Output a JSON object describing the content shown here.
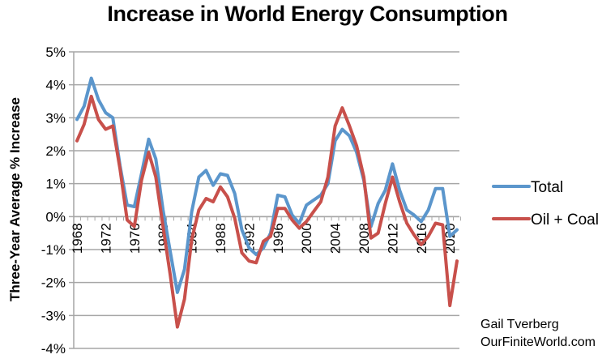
{
  "chart_data": {
    "type": "line",
    "title": "Increase in World Energy Consumption",
    "xlabel": "",
    "ylabel": "Three-Year Average % Increase",
    "ylim": [
      -4,
      5
    ],
    "yticks": [
      5,
      4,
      3,
      2,
      1,
      0,
      -1,
      -2,
      -3,
      -4
    ],
    "ytick_labels": [
      "5%",
      "4%",
      "3%",
      "2%",
      "1%",
      "0%",
      "-1%",
      "-2%",
      "-3%",
      "-4%"
    ],
    "xlim": [
      1968,
      2021
    ],
    "xtick_labels": [
      "1968",
      "1972",
      "1976",
      "1980",
      "1984",
      "1988",
      "1992",
      "1996",
      "2000",
      "2004",
      "2008",
      "2012",
      "2016",
      "2020"
    ],
    "grid": true,
    "legend_position": "right",
    "x": [
      1968,
      1969,
      1970,
      1971,
      1972,
      1973,
      1974,
      1975,
      1976,
      1977,
      1978,
      1979,
      1980,
      1981,
      1982,
      1983,
      1984,
      1985,
      1986,
      1987,
      1988,
      1989,
      1990,
      1991,
      1992,
      1993,
      1994,
      1995,
      1996,
      1997,
      1998,
      1999,
      2000,
      2001,
      2002,
      2003,
      2004,
      2005,
      2006,
      2007,
      2008,
      2009,
      2010,
      2011,
      2012,
      2013,
      2014,
      2015,
      2016,
      2017,
      2018,
      2019,
      2020,
      2021
    ],
    "series": [
      {
        "name": "Total",
        "color": "#5b96cc",
        "values": [
          2.95,
          3.35,
          4.2,
          3.55,
          3.15,
          3.0,
          1.55,
          0.35,
          0.3,
          1.3,
          2.35,
          1.75,
          0.2,
          -1.05,
          -2.3,
          -1.6,
          0.15,
          1.2,
          1.4,
          0.95,
          1.3,
          1.25,
          0.7,
          -0.4,
          -0.95,
          -1.15,
          -0.95,
          -0.5,
          0.65,
          0.6,
          0.05,
          -0.2,
          0.35,
          0.5,
          0.65,
          1.0,
          2.3,
          2.65,
          2.45,
          1.95,
          1.1,
          -0.3,
          0.4,
          0.8,
          1.6,
          0.8,
          0.2,
          0.05,
          -0.15,
          0.2,
          0.85,
          0.85,
          -0.6,
          -0.4
        ]
      },
      {
        "name": "Oil + Coal",
        "color": "#c8504b",
        "values": [
          2.3,
          2.8,
          3.65,
          2.95,
          2.65,
          2.75,
          1.45,
          -0.1,
          -0.3,
          1.1,
          1.95,
          1.2,
          -0.3,
          -1.75,
          -3.35,
          -2.5,
          -0.7,
          0.2,
          0.55,
          0.45,
          0.9,
          0.6,
          -0.05,
          -1.1,
          -1.35,
          -1.4,
          -0.75,
          -0.6,
          0.25,
          0.25,
          -0.1,
          -0.35,
          -0.15,
          0.15,
          0.45,
          1.2,
          2.75,
          3.3,
          2.75,
          2.15,
          1.2,
          -0.65,
          -0.5,
          0.4,
          1.2,
          0.45,
          -0.2,
          -0.55,
          -0.85,
          -0.6,
          -0.2,
          -0.25,
          -2.7,
          -1.35
        ]
      }
    ],
    "annotation": [
      "Gail Tverberg",
      "OurFiniteWorld.com"
    ]
  }
}
